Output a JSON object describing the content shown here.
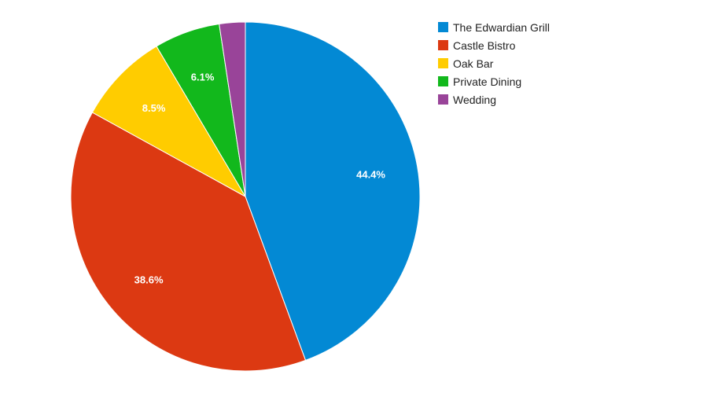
{
  "chart_data": {
    "type": "pie",
    "title": "",
    "categories": [
      "The Edwardian Grill",
      "Castle Bistro",
      "Oak Bar",
      "Private Dining",
      "Wedding"
    ],
    "values": [
      44.4,
      38.6,
      8.5,
      6.1,
      2.4
    ],
    "data_labels": [
      "44.4%",
      "38.6%",
      "8.5%",
      "6.1%",
      ""
    ],
    "colors": [
      "#0389d4",
      "#dc3912",
      "#ffcc00",
      "#12b81c",
      "#994499"
    ],
    "start_angle": "12 o'clock",
    "direction": "clockwise",
    "legend_position": "right",
    "label_color": "#ffffff"
  }
}
